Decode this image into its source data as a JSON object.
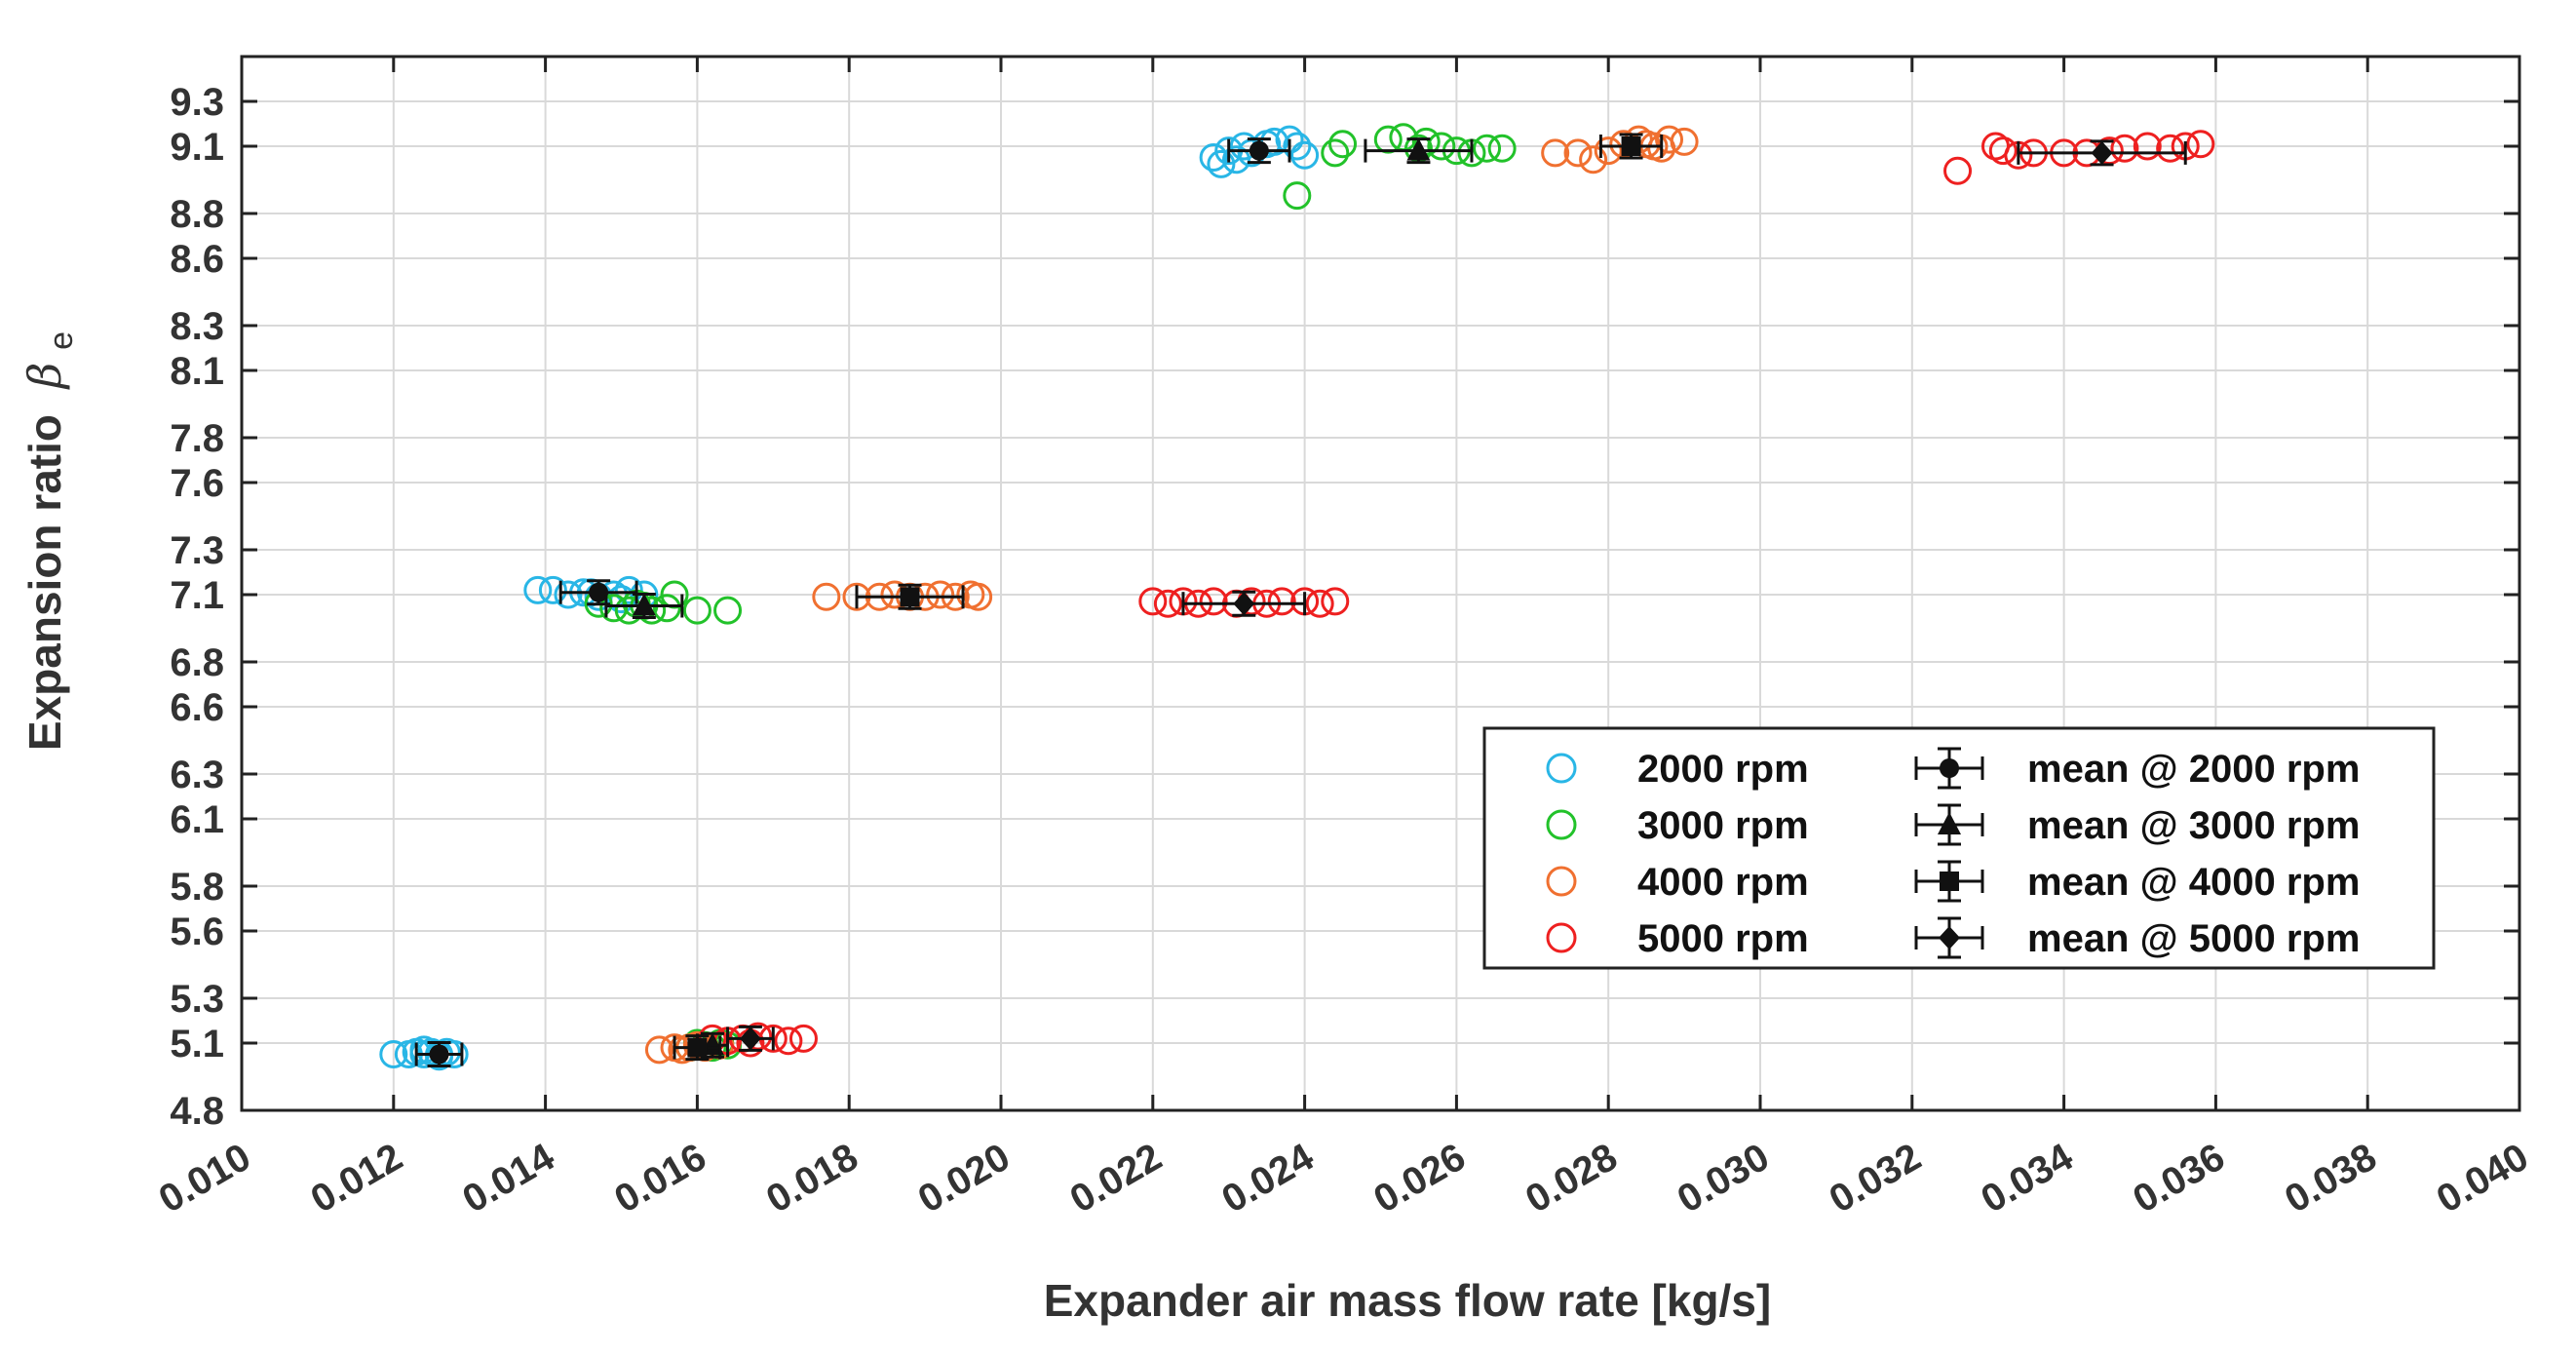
{
  "chart_data": {
    "type": "scatter",
    "title": "",
    "xlabel": "Expander air mass flow rate [kg/s]",
    "ylabel": "Expansion ratio",
    "ylabel_symbol": "β",
    "ylabel_subscript": "e",
    "xlim": [
      0.01,
      0.04
    ],
    "ylim": [
      4.8,
      9.5
    ],
    "x_ticks": [
      "0.010",
      "0.012",
      "0.014",
      "0.016",
      "0.018",
      "0.020",
      "0.022",
      "0.024",
      "0.026",
      "0.028",
      "0.030",
      "0.032",
      "0.034",
      "0.036",
      "0.038",
      "0.040"
    ],
    "y_ticks": [
      "4.8",
      "5.1",
      "5.3",
      "5.6",
      "5.8",
      "6.1",
      "6.3",
      "6.6",
      "6.8",
      "7.1",
      "7.3",
      "7.6",
      "7.8",
      "8.1",
      "8.3",
      "8.6",
      "8.8",
      "9.1",
      "9.3"
    ],
    "grid": true,
    "legend_position": "lower-right",
    "series": [
      {
        "name": "2000 rpm",
        "color": "#29b6e6",
        "marker": "circle-open",
        "points": [
          [
            0.012,
            5.05
          ],
          [
            0.0122,
            5.05
          ],
          [
            0.0123,
            5.06
          ],
          [
            0.0124,
            5.05
          ],
          [
            0.0125,
            5.06
          ],
          [
            0.0126,
            5.05
          ],
          [
            0.0127,
            5.06
          ],
          [
            0.0128,
            5.05
          ],
          [
            0.0124,
            5.07
          ],
          [
            0.0126,
            5.04
          ],
          [
            0.0139,
            7.12
          ],
          [
            0.0141,
            7.12
          ],
          [
            0.0143,
            7.1
          ],
          [
            0.0145,
            7.11
          ],
          [
            0.0147,
            7.09
          ],
          [
            0.0149,
            7.1
          ],
          [
            0.0151,
            7.12
          ],
          [
            0.0153,
            7.1
          ],
          [
            0.015,
            7.08
          ],
          [
            0.0146,
            7.11
          ],
          [
            0.0228,
            9.05
          ],
          [
            0.0229,
            9.02
          ],
          [
            0.023,
            9.08
          ],
          [
            0.0232,
            9.1
          ],
          [
            0.0233,
            9.07
          ],
          [
            0.0235,
            9.11
          ],
          [
            0.0236,
            9.12
          ],
          [
            0.0238,
            9.13
          ],
          [
            0.0239,
            9.1
          ],
          [
            0.024,
            9.06
          ],
          [
            0.0231,
            9.04
          ]
        ]
      },
      {
        "name": "3000 rpm",
        "color": "#22c22a",
        "marker": "circle-open",
        "points": [
          [
            0.0147,
            7.06
          ],
          [
            0.0149,
            7.04
          ],
          [
            0.0151,
            7.03
          ],
          [
            0.0153,
            7.05
          ],
          [
            0.0154,
            7.03
          ],
          [
            0.0156,
            7.04
          ],
          [
            0.0157,
            7.1
          ],
          [
            0.016,
            7.03
          ],
          [
            0.0164,
            7.03
          ],
          [
            0.0152,
            7.06
          ],
          [
            0.0159,
            5.08
          ],
          [
            0.0161,
            5.09
          ],
          [
            0.0162,
            5.08
          ],
          [
            0.0163,
            5.1
          ],
          [
            0.0164,
            5.09
          ],
          [
            0.016,
            5.1
          ],
          [
            0.0239,
            8.88
          ],
          [
            0.0244,
            9.07
          ],
          [
            0.0245,
            9.11
          ],
          [
            0.0251,
            9.13
          ],
          [
            0.0253,
            9.14
          ],
          [
            0.0256,
            9.12
          ],
          [
            0.0258,
            9.1
          ],
          [
            0.026,
            9.08
          ],
          [
            0.0262,
            9.07
          ],
          [
            0.0264,
            9.09
          ],
          [
            0.0266,
            9.09
          ],
          [
            0.0255,
            9.09
          ]
        ]
      },
      {
        "name": "4000 rpm",
        "color": "#f07030",
        "marker": "circle-open",
        "points": [
          [
            0.0155,
            5.07
          ],
          [
            0.0157,
            5.08
          ],
          [
            0.0158,
            5.07
          ],
          [
            0.016,
            5.09
          ],
          [
            0.0161,
            5.08
          ],
          [
            0.0163,
            5.09
          ],
          [
            0.0159,
            5.08
          ],
          [
            0.0177,
            7.09
          ],
          [
            0.0181,
            7.09
          ],
          [
            0.0184,
            7.09
          ],
          [
            0.0186,
            7.1
          ],
          [
            0.0188,
            7.09
          ],
          [
            0.019,
            7.09
          ],
          [
            0.0192,
            7.1
          ],
          [
            0.0194,
            7.09
          ],
          [
            0.0196,
            7.1
          ],
          [
            0.0197,
            7.09
          ],
          [
            0.0273,
            9.07
          ],
          [
            0.0276,
            9.07
          ],
          [
            0.0278,
            9.04
          ],
          [
            0.028,
            9.08
          ],
          [
            0.0282,
            9.11
          ],
          [
            0.0284,
            9.13
          ],
          [
            0.0285,
            9.11
          ],
          [
            0.0286,
            9.1
          ],
          [
            0.0288,
            9.13
          ],
          [
            0.029,
            9.12
          ],
          [
            0.0287,
            9.09
          ]
        ]
      },
      {
        "name": "5000 rpm",
        "color": "#ee2020",
        "marker": "circle-open",
        "points": [
          [
            0.0162,
            5.12
          ],
          [
            0.0164,
            5.11
          ],
          [
            0.0166,
            5.12
          ],
          [
            0.0168,
            5.13
          ],
          [
            0.017,
            5.12
          ],
          [
            0.0172,
            5.11
          ],
          [
            0.0174,
            5.12
          ],
          [
            0.0167,
            5.1
          ],
          [
            0.022,
            7.07
          ],
          [
            0.0222,
            7.06
          ],
          [
            0.0224,
            7.07
          ],
          [
            0.0226,
            7.06
          ],
          [
            0.0228,
            7.07
          ],
          [
            0.0231,
            7.06
          ],
          [
            0.0233,
            7.07
          ],
          [
            0.0235,
            7.06
          ],
          [
            0.0237,
            7.07
          ],
          [
            0.024,
            7.07
          ],
          [
            0.0242,
            7.06
          ],
          [
            0.0244,
            7.07
          ],
          [
            0.0326,
            8.99
          ],
          [
            0.0331,
            9.1
          ],
          [
            0.0332,
            9.08
          ],
          [
            0.0334,
            9.06
          ],
          [
            0.0336,
            9.07
          ],
          [
            0.034,
            9.07
          ],
          [
            0.0343,
            9.07
          ],
          [
            0.0346,
            9.08
          ],
          [
            0.0348,
            9.09
          ],
          [
            0.0351,
            9.1
          ],
          [
            0.0354,
            9.09
          ],
          [
            0.0356,
            9.1
          ],
          [
            0.0358,
            9.11
          ]
        ]
      }
    ],
    "means": [
      {
        "name": "mean @ 2000 rpm",
        "marker": "circle-filled",
        "color": "#111111",
        "points": [
          {
            "x": 0.0126,
            "y": 5.05,
            "xerr": 0.0003,
            "yerr": 0.02
          },
          {
            "x": 0.0147,
            "y": 7.11,
            "xerr": 0.0005,
            "yerr": 0.02
          },
          {
            "x": 0.0234,
            "y": 9.08,
            "xerr": 0.0004,
            "yerr": 0.03
          }
        ]
      },
      {
        "name": "mean @ 3000 rpm",
        "marker": "triangle-filled",
        "color": "#111111",
        "points": [
          {
            "x": 0.0162,
            "y": 5.09,
            "xerr": 0.0002,
            "yerr": 0.01
          },
          {
            "x": 0.0153,
            "y": 7.05,
            "xerr": 0.0005,
            "yerr": 0.04
          },
          {
            "x": 0.0255,
            "y": 9.08,
            "xerr": 0.0007,
            "yerr": 0.05
          }
        ]
      },
      {
        "name": "mean @ 4000 rpm",
        "marker": "square-filled",
        "color": "#111111",
        "points": [
          {
            "x": 0.016,
            "y": 5.08,
            "xerr": 0.0003,
            "yerr": 0.01
          },
          {
            "x": 0.0188,
            "y": 7.09,
            "xerr": 0.0007,
            "yerr": 0.01
          },
          {
            "x": 0.0283,
            "y": 9.1,
            "xerr": 0.0004,
            "yerr": 0.03
          }
        ]
      },
      {
        "name": "mean @ 5000 rpm",
        "marker": "diamond-filled",
        "color": "#111111",
        "points": [
          {
            "x": 0.0167,
            "y": 5.12,
            "xerr": 0.0003,
            "yerr": 0.01
          },
          {
            "x": 0.0232,
            "y": 7.06,
            "xerr": 0.0008,
            "yerr": 0.01
          },
          {
            "x": 0.0345,
            "y": 9.07,
            "xerr": 0.0011,
            "yerr": 0.03
          }
        ]
      }
    ]
  }
}
